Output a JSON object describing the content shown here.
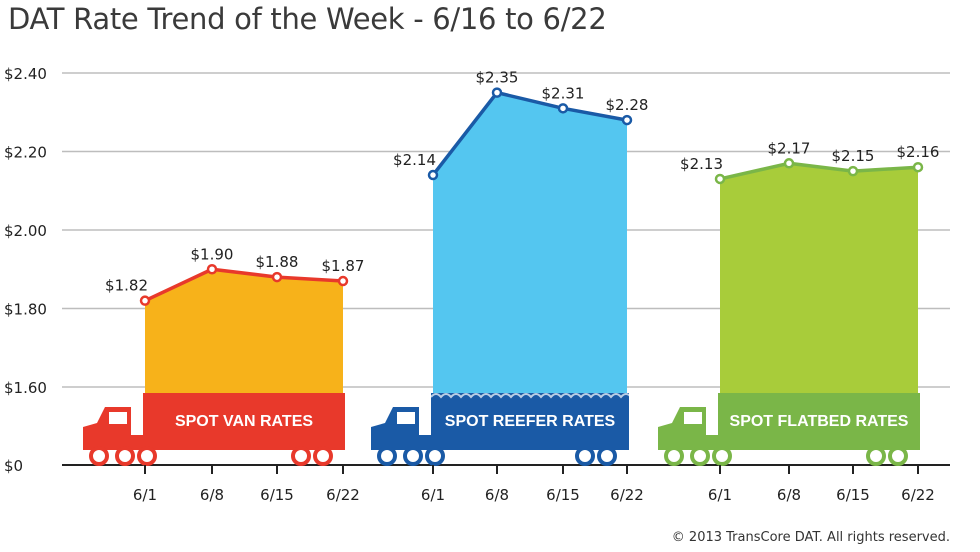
{
  "title": "DAT Rate Trend of the Week - 6/16 to 6/22",
  "copyright": "© 2013 TransCore DAT. All rights reserved.",
  "chart_data": {
    "type": "area",
    "title": "DAT Rate Trend of the Week - 6/16 to 6/22",
    "xlabel": "",
    "ylabel": "",
    "ylim": [
      0,
      2.4
    ],
    "y_ticks": [
      "$0",
      "$1.60",
      "$1.80",
      "$2.00",
      "$2.20",
      "$2.40"
    ],
    "y_tick_values": [
      0,
      1.6,
      1.8,
      2.0,
      2.2,
      2.4
    ],
    "grid": true,
    "panels": [
      {
        "name": "SPOT VAN RATES",
        "color": "#f7b21a",
        "line_color": "#e8392b",
        "banner_color": "#e8392b",
        "x": [
          "6/1",
          "6/8",
          "6/15",
          "6/22"
        ],
        "values": [
          1.82,
          1.9,
          1.88,
          1.87
        ],
        "labels": [
          "$1.82",
          "$1.90",
          "$1.88",
          "$1.87"
        ]
      },
      {
        "name": "SPOT REEFER RATES",
        "color": "#54c6f0",
        "line_color": "#1a5aa6",
        "banner_color": "#1a5aa6",
        "x": [
          "6/1",
          "6/8",
          "6/15",
          "6/22"
        ],
        "values": [
          2.14,
          2.35,
          2.31,
          2.28
        ],
        "labels": [
          "$2.14",
          "$2.35",
          "$2.31",
          "$2.28"
        ]
      },
      {
        "name": "SPOT FLATBED RATES",
        "color": "#a8cc3a",
        "line_color": "#7ab648",
        "banner_color": "#7ab648",
        "x": [
          "6/1",
          "6/8",
          "6/15",
          "6/22"
        ],
        "values": [
          2.13,
          2.17,
          2.15,
          2.16
        ],
        "labels": [
          "$2.13",
          "$2.17",
          "$2.15",
          "$2.16"
        ]
      }
    ]
  }
}
